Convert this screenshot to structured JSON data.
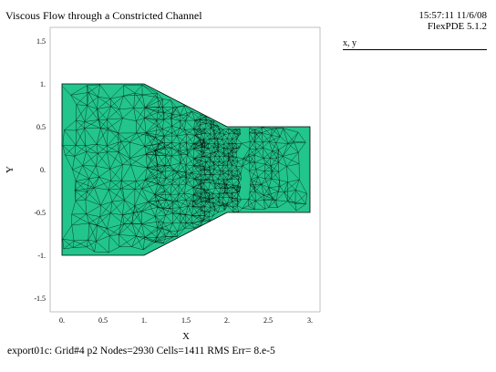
{
  "header": {
    "title": "Viscous Flow through a Constricted Channel",
    "timestamp": "15:57:11 11/6/08",
    "version": "FlexPDE 5.1.2"
  },
  "legend": {
    "label": "x, y"
  },
  "footer": {
    "status": "export01c:  Grid#4  p2  Nodes=2930 Cells=1411 RMS Err= 8.e-5"
  },
  "plot": {
    "xlabel": "X",
    "ylabel": "Y",
    "x_ticks": [
      "0.",
      "0.5",
      "1.",
      "1.5",
      "2.",
      "2.5",
      "3."
    ],
    "y_ticks": [
      "1.5",
      "1.",
      "0.5",
      "0.",
      "-0.5",
      "-1.",
      "-1.5"
    ],
    "mesh_color": "#22c58b",
    "line_color": "#000000"
  }
}
